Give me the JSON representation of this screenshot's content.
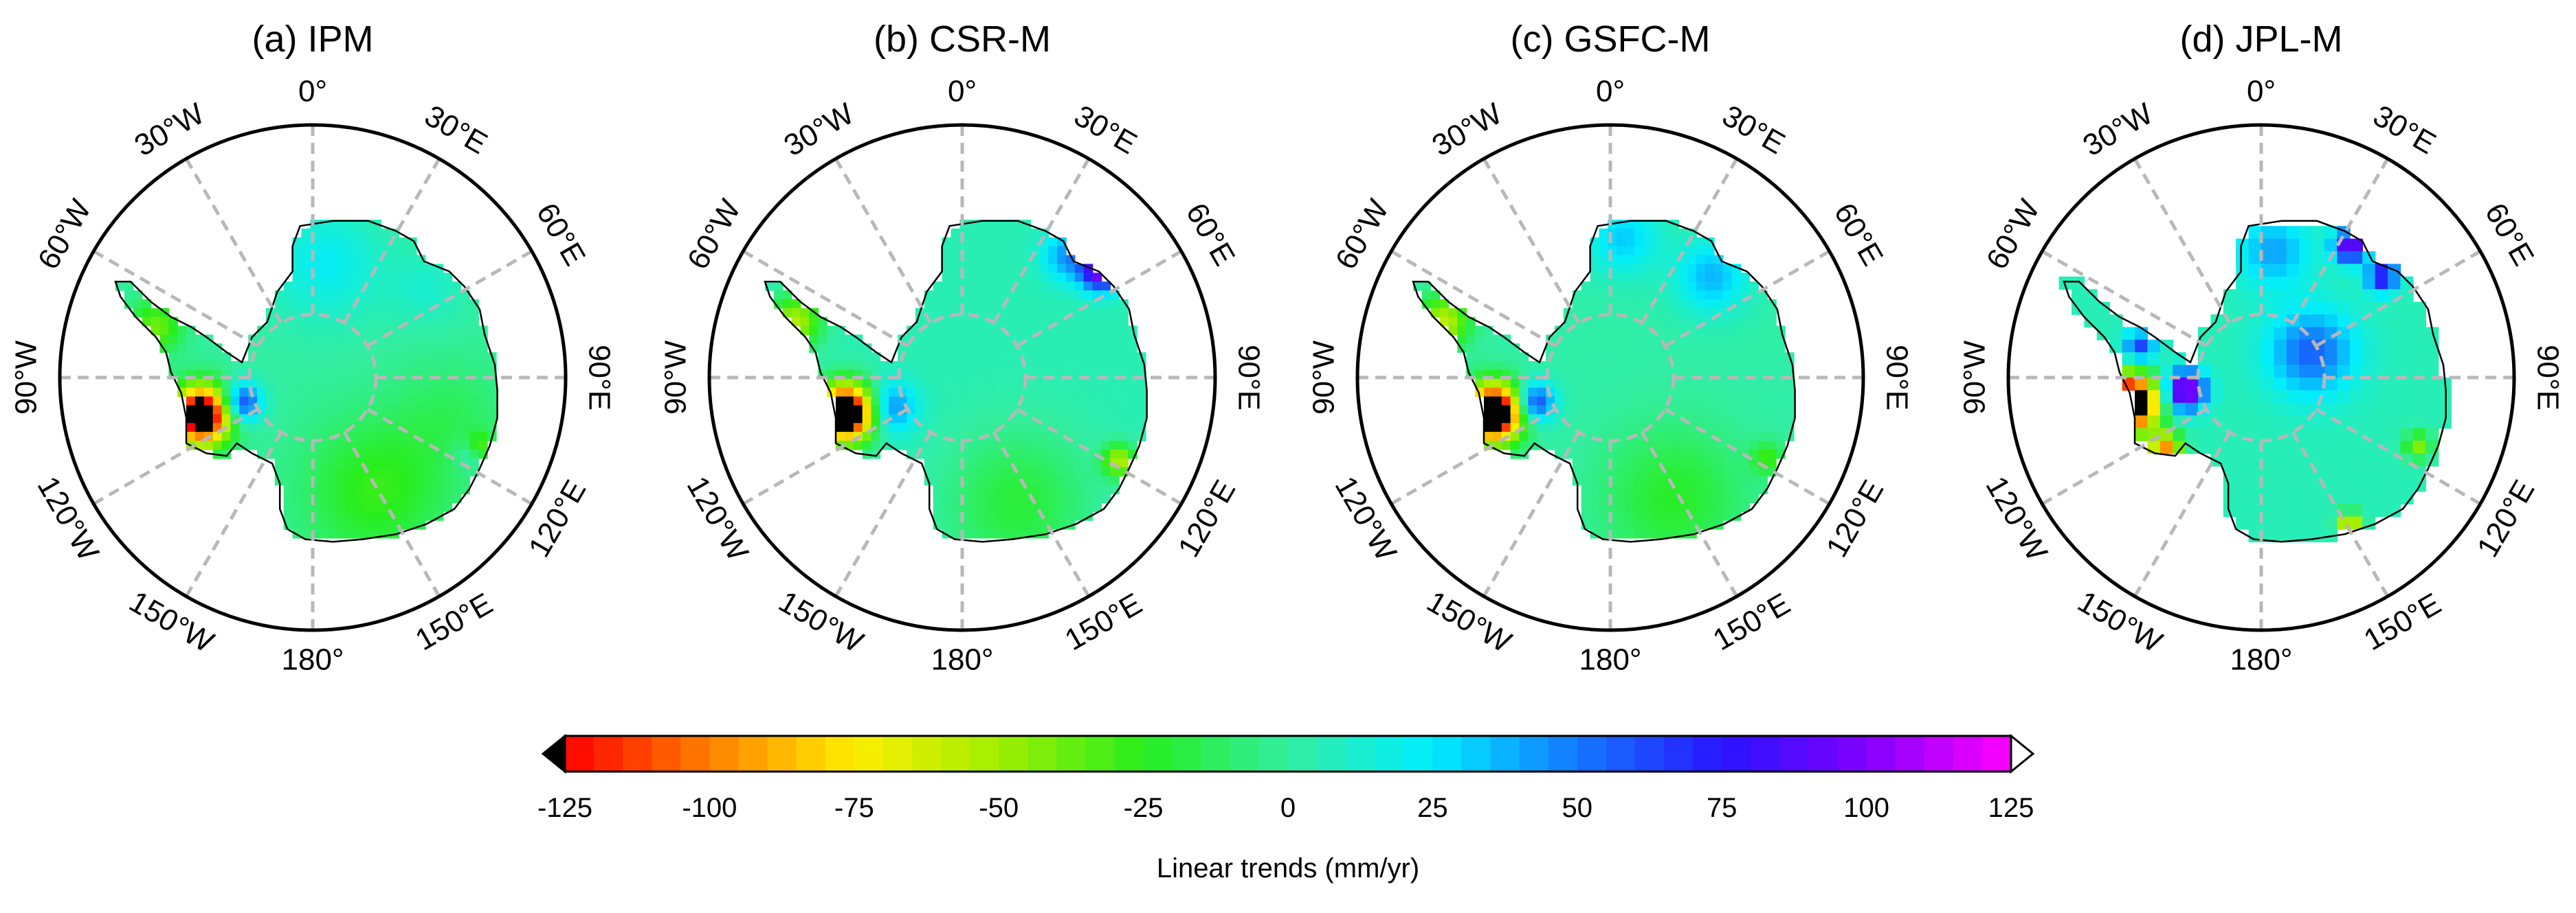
{
  "figure": {
    "colorbar": {
      "title": "Linear trends (mm/yr)",
      "ticks": [
        "-125",
        "-100",
        "-75",
        "-50",
        "-25",
        "0",
        "25",
        "50",
        "75",
        "100",
        "125"
      ],
      "min": -125,
      "max": 125,
      "step": 5,
      "under_color": "#000000",
      "over_color": "#ffffff"
    },
    "longitude_labels": [
      "0°",
      "30°E",
      "60°E",
      "90°E",
      "120°E",
      "150°E",
      "180°",
      "150°W",
      "120°W",
      "90°W",
      "60°W",
      "30°W"
    ],
    "panels": [
      {
        "title": "(a) IPM",
        "profile": "ipm"
      },
      {
        "title": "(b) CSR-M",
        "profile": "csr"
      },
      {
        "title": "(c) GSFC-M",
        "profile": "gsfc"
      },
      {
        "title": "(d) JPL-M",
        "profile": "jpl"
      }
    ],
    "colors": {
      "land_base": "#33ee99",
      "graticule": "#b8b8b8",
      "frame": "#000000"
    }
  }
}
